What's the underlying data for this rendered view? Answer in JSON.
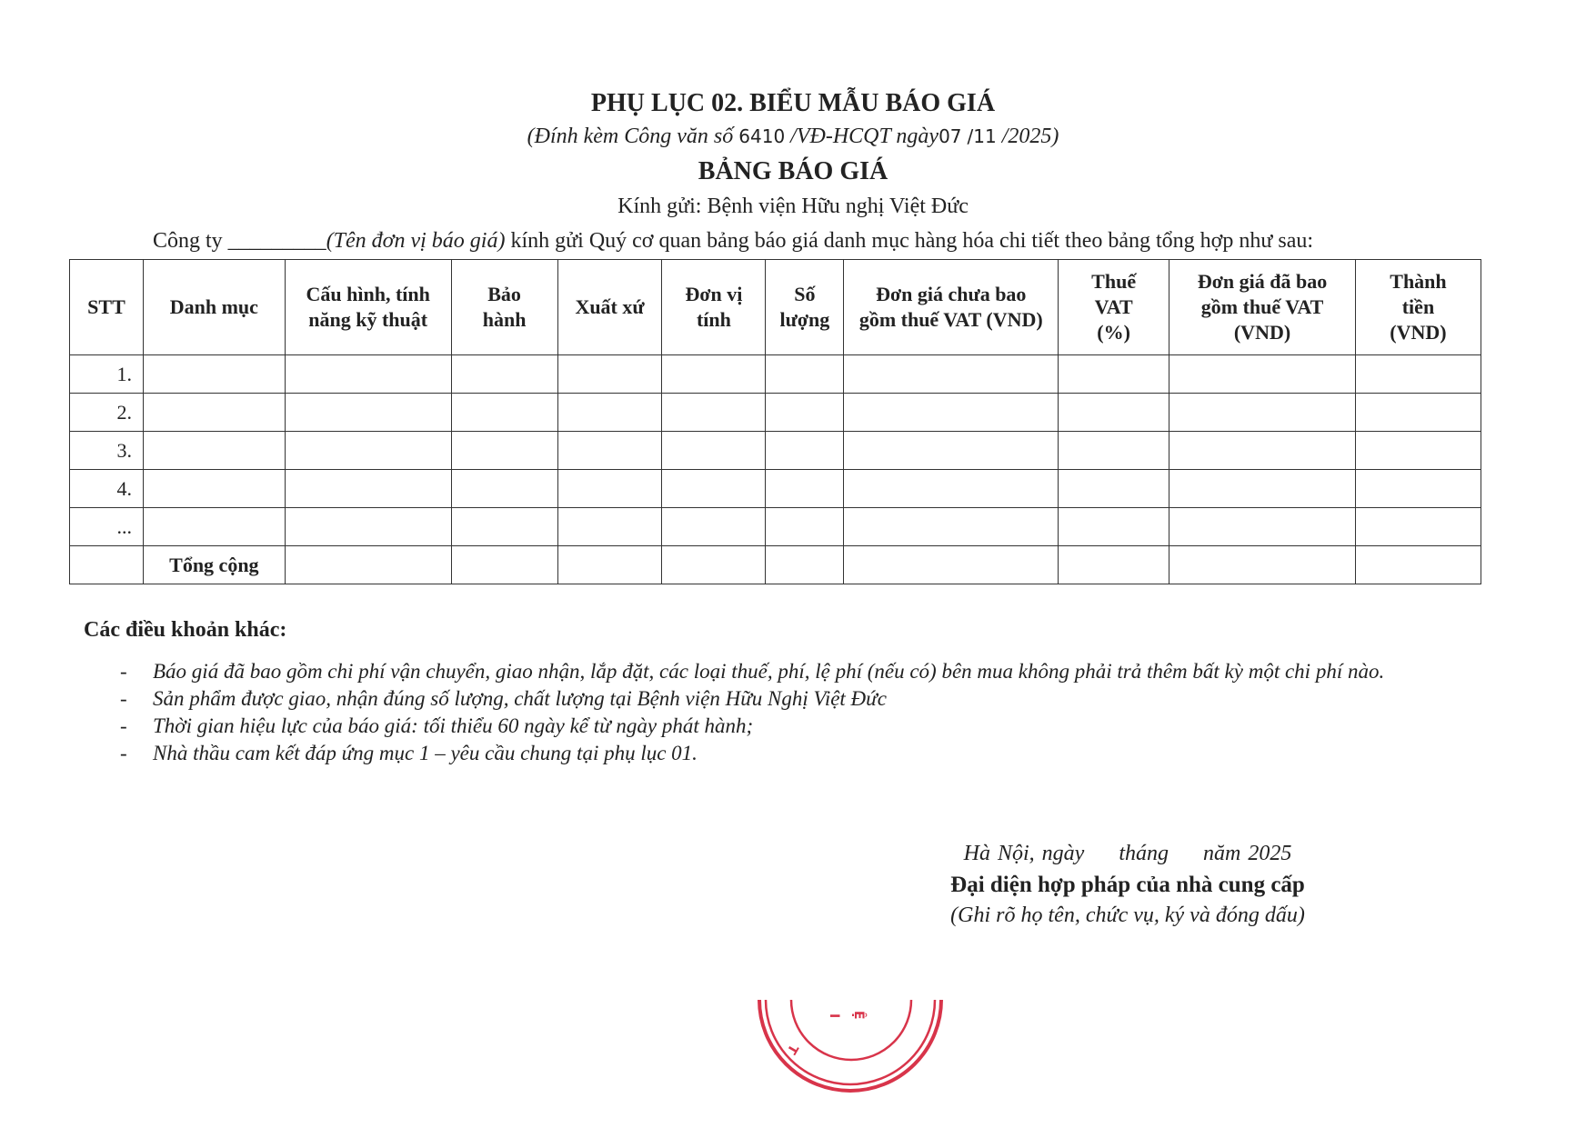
{
  "header": {
    "title": "PHỤ LỤC 02. BIỂU MẪU BÁO GIÁ",
    "subtitle_prefix": "(Đính kèm Công văn số",
    "doc_number": "6410",
    "subtitle_mid": "/VĐ-HCQT ngày",
    "day": "07",
    "month": "/11",
    "subtitle_suffix": "/2025)",
    "table_title": "BẢNG BÁO GIÁ",
    "recipient": "Kính gửi: Bệnh viện Hữu nghị Việt Đức",
    "intro_prefix": "Công ty _________",
    "intro_italic": "(Tên đơn vị báo giá)",
    "intro_suffix": " kính gửi Quý cơ quan bảng báo giá danh mục hàng hóa chi tiết theo bảng tổng hợp như sau:"
  },
  "table": {
    "columns": [
      "STT",
      "Danh mục",
      "Cấu hình, tính năng kỹ thuật",
      "Bảo hành",
      "Xuất xứ",
      "Đơn vị tính",
      "Số lượng",
      "Đơn giá chưa bao gồm thuế VAT (VND)",
      "Thuế VAT (%)",
      "Đơn giá đã bao gồm thuế VAT (VND)",
      "Thành tiền (VND)"
    ],
    "rows": [
      "1.",
      "2.",
      "3.",
      "4.",
      "..."
    ],
    "total_label": "Tổng cộng"
  },
  "terms": {
    "heading": "Các điều khoản khác:",
    "items": [
      "Báo giá đã bao gồm chi phí vận chuyển, giao nhận, lắp đặt, các loại thuế, phí, lệ phí (nếu có) bên mua không phải trả thêm bất kỳ một chi phí nào.",
      "Sản phẩm được giao, nhận đúng số lượng, chất lượng tại Bệnh viện Hữu Nghị Việt Đức",
      "Thời gian hiệu lực của báo giá: tối thiểu 60 ngày kể từ ngày phát hành;",
      "Nhà thầu cam kết đáp ứng mục 1 – yêu cầu chung tại phụ lục 01."
    ]
  },
  "signature": {
    "date_place": "Hà Nội, ngày",
    "date_month": "tháng",
    "date_year": "năm 2025",
    "representative": "Đại diện hợp pháp của nhà cung cấp",
    "note": "(Ghi rõ họ tên, chức vụ, ký và đóng dấu)"
  },
  "stamp": {
    "color": "#d8344a"
  }
}
